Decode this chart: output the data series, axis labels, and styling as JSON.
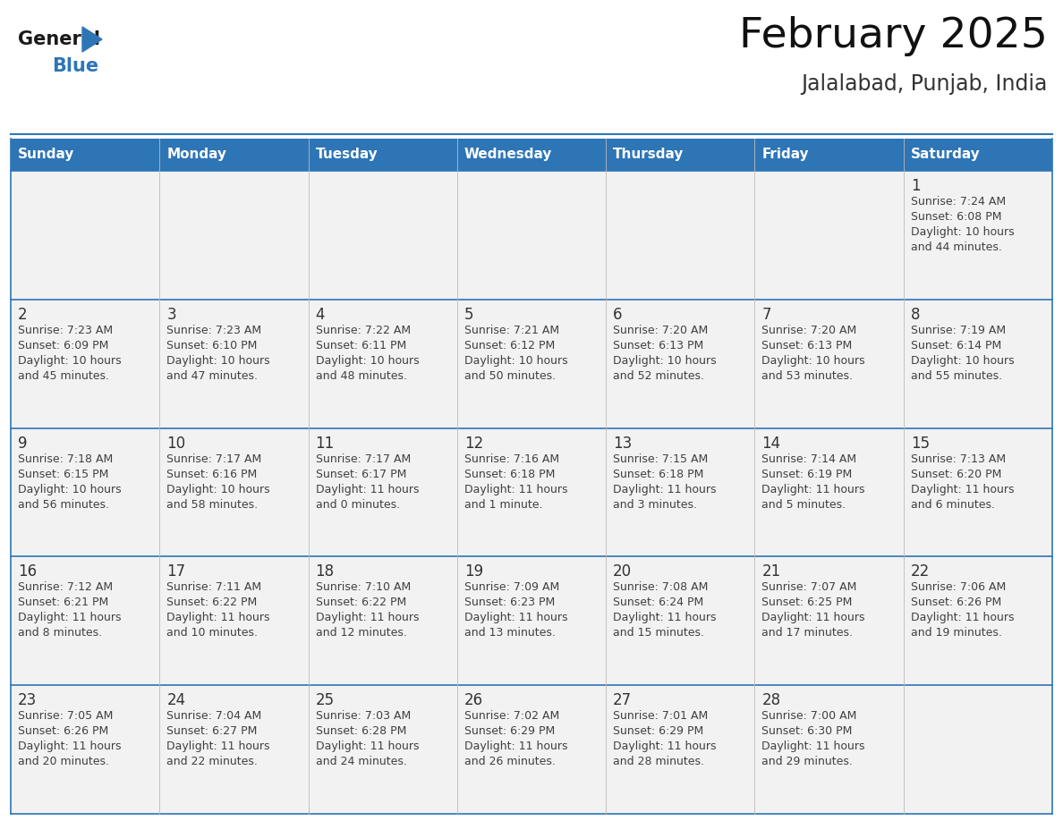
{
  "title": "February 2025",
  "subtitle": "Jalalabad, Punjab, India",
  "days_of_week": [
    "Sunday",
    "Monday",
    "Tuesday",
    "Wednesday",
    "Thursday",
    "Friday",
    "Saturday"
  ],
  "header_bg": "#2E75B6",
  "header_text": "#FFFFFF",
  "cell_bg": "#F2F2F2",
  "border_color": "#2E75B6",
  "text_color": "#404040",
  "day_number_color": "#333333",
  "logo_general_color": "#1a1a1a",
  "logo_blue_color": "#2E75B6",
  "calendar_data": [
    [
      null,
      null,
      null,
      null,
      null,
      null,
      1
    ],
    [
      2,
      3,
      4,
      5,
      6,
      7,
      8
    ],
    [
      9,
      10,
      11,
      12,
      13,
      14,
      15
    ],
    [
      16,
      17,
      18,
      19,
      20,
      21,
      22
    ],
    [
      23,
      24,
      25,
      26,
      27,
      28,
      null
    ]
  ],
  "sunrise_data": {
    "1": "7:24 AM",
    "2": "7:23 AM",
    "3": "7:23 AM",
    "4": "7:22 AM",
    "5": "7:21 AM",
    "6": "7:20 AM",
    "7": "7:20 AM",
    "8": "7:19 AM",
    "9": "7:18 AM",
    "10": "7:17 AM",
    "11": "7:17 AM",
    "12": "7:16 AM",
    "13": "7:15 AM",
    "14": "7:14 AM",
    "15": "7:13 AM",
    "16": "7:12 AM",
    "17": "7:11 AM",
    "18": "7:10 AM",
    "19": "7:09 AM",
    "20": "7:08 AM",
    "21": "7:07 AM",
    "22": "7:06 AM",
    "23": "7:05 AM",
    "24": "7:04 AM",
    "25": "7:03 AM",
    "26": "7:02 AM",
    "27": "7:01 AM",
    "28": "7:00 AM"
  },
  "sunset_data": {
    "1": "6:08 PM",
    "2": "6:09 PM",
    "3": "6:10 PM",
    "4": "6:11 PM",
    "5": "6:12 PM",
    "6": "6:13 PM",
    "7": "6:13 PM",
    "8": "6:14 PM",
    "9": "6:15 PM",
    "10": "6:16 PM",
    "11": "6:17 PM",
    "12": "6:18 PM",
    "13": "6:18 PM",
    "14": "6:19 PM",
    "15": "6:20 PM",
    "16": "6:21 PM",
    "17": "6:22 PM",
    "18": "6:22 PM",
    "19": "6:23 PM",
    "20": "6:24 PM",
    "21": "6:25 PM",
    "22": "6:26 PM",
    "23": "6:26 PM",
    "24": "6:27 PM",
    "25": "6:28 PM",
    "26": "6:29 PM",
    "27": "6:29 PM",
    "28": "6:30 PM"
  },
  "daylight_data": {
    "1": [
      "10 hours",
      "and 44 minutes."
    ],
    "2": [
      "10 hours",
      "and 45 minutes."
    ],
    "3": [
      "10 hours",
      "and 47 minutes."
    ],
    "4": [
      "10 hours",
      "and 48 minutes."
    ],
    "5": [
      "10 hours",
      "and 50 minutes."
    ],
    "6": [
      "10 hours",
      "and 52 minutes."
    ],
    "7": [
      "10 hours",
      "and 53 minutes."
    ],
    "8": [
      "10 hours",
      "and 55 minutes."
    ],
    "9": [
      "10 hours",
      "and 56 minutes."
    ],
    "10": [
      "10 hours",
      "and 58 minutes."
    ],
    "11": [
      "11 hours",
      "and 0 minutes."
    ],
    "12": [
      "11 hours",
      "and 1 minute."
    ],
    "13": [
      "11 hours",
      "and 3 minutes."
    ],
    "14": [
      "11 hours",
      "and 5 minutes."
    ],
    "15": [
      "11 hours",
      "and 6 minutes."
    ],
    "16": [
      "11 hours",
      "and 8 minutes."
    ],
    "17": [
      "11 hours",
      "and 10 minutes."
    ],
    "18": [
      "11 hours",
      "and 12 minutes."
    ],
    "19": [
      "11 hours",
      "and 13 minutes."
    ],
    "20": [
      "11 hours",
      "and 15 minutes."
    ],
    "21": [
      "11 hours",
      "and 17 minutes."
    ],
    "22": [
      "11 hours",
      "and 19 minutes."
    ],
    "23": [
      "11 hours",
      "and 20 minutes."
    ],
    "24": [
      "11 hours",
      "and 22 minutes."
    ],
    "25": [
      "11 hours",
      "and 24 minutes."
    ],
    "26": [
      "11 hours",
      "and 26 minutes."
    ],
    "27": [
      "11 hours",
      "and 28 minutes."
    ],
    "28": [
      "11 hours",
      "and 29 minutes."
    ]
  },
  "fig_width": 11.88,
  "fig_height": 9.18,
  "dpi": 100
}
